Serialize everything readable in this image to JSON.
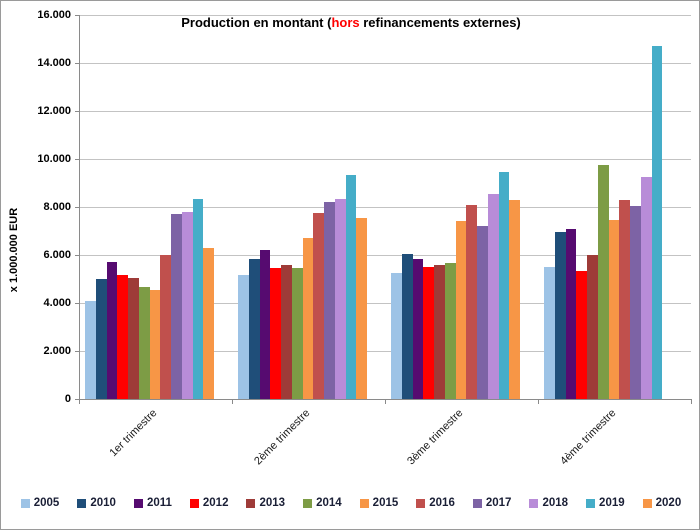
{
  "chart_data": {
    "type": "bar",
    "title": {
      "prefix": "Production en montant (",
      "highlight": "hors",
      "suffix": " refinancements externes)"
    },
    "ylabel": "x 1.000.000  EUR",
    "categories": [
      "1er trimestre",
      "2ème trimestre",
      "3ème trimestre",
      "4ème trimestre"
    ],
    "series": [
      {
        "name": "2005",
        "color": "#9dc3e6",
        "values": [
          4100,
          5150,
          5250,
          5500
        ]
      },
      {
        "name": "2010",
        "color": "#1f4e79",
        "values": [
          5000,
          5850,
          6050,
          6950
        ]
      },
      {
        "name": "2011",
        "color": "#560b70",
        "values": [
          5700,
          6200,
          5850,
          7100
        ]
      },
      {
        "name": "2012",
        "color": "#ff0000",
        "values": [
          5150,
          5450,
          5500,
          5350
        ]
      },
      {
        "name": "2013",
        "color": "#9e3b38",
        "values": [
          5050,
          5600,
          5600,
          6000
        ]
      },
      {
        "name": "2014",
        "color": "#7d9c45",
        "values": [
          4650,
          5450,
          5650,
          9750
        ]
      },
      {
        "name": "2015",
        "color": "#f79646",
        "values": [
          4550,
          6700,
          7400,
          7450
        ]
      },
      {
        "name": "2016",
        "color": "#c0504d",
        "values": [
          6000,
          7750,
          8100,
          8300
        ]
      },
      {
        "name": "2017",
        "color": "#7d63a5",
        "values": [
          7700,
          8200,
          7200,
          8050
        ]
      },
      {
        "name": "2018",
        "color": "#b88cd8",
        "values": [
          7800,
          8350,
          8550,
          9250
        ]
      },
      {
        "name": "2019",
        "color": "#45adc8",
        "values": [
          8350,
          9350,
          9450,
          14700
        ]
      },
      {
        "name": "2020",
        "color": "#f79646",
        "values": [
          6300,
          7550,
          8300,
          null
        ]
      }
    ],
    "ylim": [
      0,
      16000
    ],
    "yticks": [
      "16.000",
      "14.000",
      "12.000",
      "10.000",
      "8.000",
      "6.000",
      "4.000",
      "2.000",
      "0"
    ],
    "grid": true,
    "legend_position": "bottom"
  },
  "colors": {
    "grid": "#c3c3c3",
    "axis": "#8a8a8a",
    "title_highlight": "#ff0000",
    "background": "#ffffff",
    "frame_border": "#9a9a9a"
  }
}
